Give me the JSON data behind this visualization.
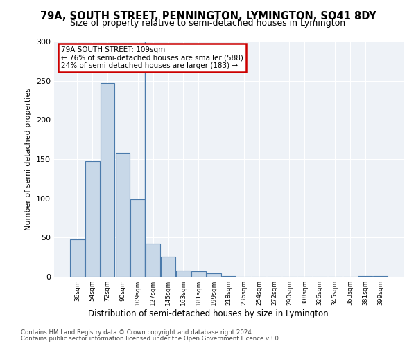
{
  "title": "79A, SOUTH STREET, PENNINGTON, LYMINGTON, SO41 8DY",
  "subtitle": "Size of property relative to semi-detached houses in Lymington",
  "xlabel": "Distribution of semi-detached houses by size in Lymington",
  "ylabel": "Number of semi-detached properties",
  "bar_values": [
    48,
    147,
    247,
    158,
    99,
    42,
    26,
    8,
    7,
    4,
    1,
    0,
    0,
    0,
    0,
    0,
    0,
    0,
    0,
    1,
    1
  ],
  "bar_labels": [
    "36sqm",
    "54sqm",
    "72sqm",
    "90sqm",
    "109sqm",
    "127sqm",
    "145sqm",
    "163sqm",
    "181sqm",
    "199sqm",
    "218sqm",
    "236sqm",
    "254sqm",
    "272sqm",
    "290sqm",
    "308sqm",
    "326sqm",
    "345sqm",
    "363sqm",
    "381sqm",
    "399sqm"
  ],
  "bar_color": "#c8d8e8",
  "bar_edge_color": "#4a7aab",
  "annotation_label": "79A SOUTH STREET: 109sqm",
  "annotation_smaller": "← 76% of semi-detached houses are smaller (588)",
  "annotation_larger": "24% of semi-detached houses are larger (183) →",
  "annotation_box_color": "#cc0000",
  "property_bar_index": 4,
  "ylim": [
    0,
    300
  ],
  "yticks": [
    0,
    50,
    100,
    150,
    200,
    250,
    300
  ],
  "background_color": "#eef2f7",
  "footer_line1": "Contains HM Land Registry data © Crown copyright and database right 2024.",
  "footer_line2": "Contains public sector information licensed under the Open Government Licence v3.0."
}
